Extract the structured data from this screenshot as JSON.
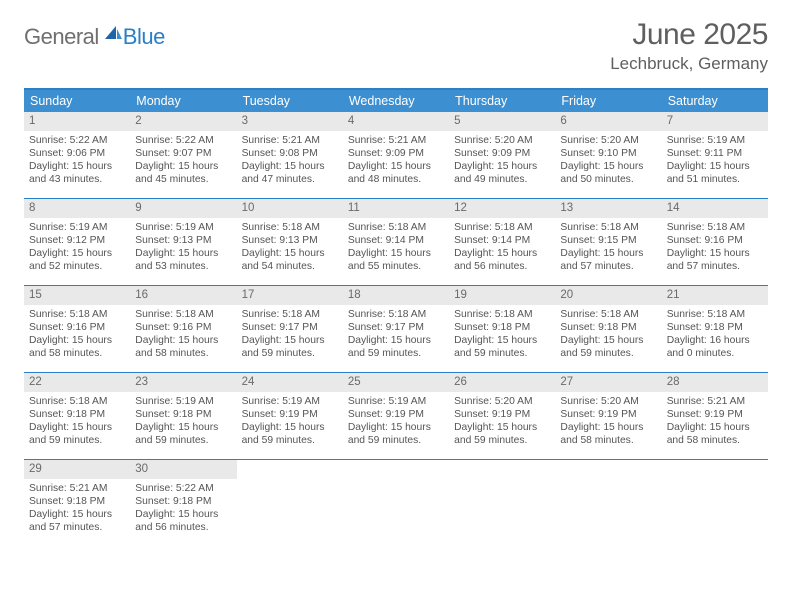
{
  "logo": {
    "general": "General",
    "blue": "Blue"
  },
  "title": "June 2025",
  "location": "Lechbruck, Germany",
  "colors": {
    "header_bar": "#3c8fd0",
    "border": "#2a7fc8",
    "daynum_bg": "#e9e9e9",
    "text": "#555555",
    "logo_gray": "#6f6f6f",
    "logo_blue": "#2a7fc8",
    "background": "#ffffff"
  },
  "day_headers": [
    "Sunday",
    "Monday",
    "Tuesday",
    "Wednesday",
    "Thursday",
    "Friday",
    "Saturday"
  ],
  "weeks": [
    [
      {
        "n": "1",
        "sr": "5:22 AM",
        "ss": "9:06 PM",
        "dl": "15 hours and 43 minutes."
      },
      {
        "n": "2",
        "sr": "5:22 AM",
        "ss": "9:07 PM",
        "dl": "15 hours and 45 minutes."
      },
      {
        "n": "3",
        "sr": "5:21 AM",
        "ss": "9:08 PM",
        "dl": "15 hours and 47 minutes."
      },
      {
        "n": "4",
        "sr": "5:21 AM",
        "ss": "9:09 PM",
        "dl": "15 hours and 48 minutes."
      },
      {
        "n": "5",
        "sr": "5:20 AM",
        "ss": "9:09 PM",
        "dl": "15 hours and 49 minutes."
      },
      {
        "n": "6",
        "sr": "5:20 AM",
        "ss": "9:10 PM",
        "dl": "15 hours and 50 minutes."
      },
      {
        "n": "7",
        "sr": "5:19 AM",
        "ss": "9:11 PM",
        "dl": "15 hours and 51 minutes."
      }
    ],
    [
      {
        "n": "8",
        "sr": "5:19 AM",
        "ss": "9:12 PM",
        "dl": "15 hours and 52 minutes."
      },
      {
        "n": "9",
        "sr": "5:19 AM",
        "ss": "9:13 PM",
        "dl": "15 hours and 53 minutes."
      },
      {
        "n": "10",
        "sr": "5:18 AM",
        "ss": "9:13 PM",
        "dl": "15 hours and 54 minutes."
      },
      {
        "n": "11",
        "sr": "5:18 AM",
        "ss": "9:14 PM",
        "dl": "15 hours and 55 minutes."
      },
      {
        "n": "12",
        "sr": "5:18 AM",
        "ss": "9:14 PM",
        "dl": "15 hours and 56 minutes."
      },
      {
        "n": "13",
        "sr": "5:18 AM",
        "ss": "9:15 PM",
        "dl": "15 hours and 57 minutes."
      },
      {
        "n": "14",
        "sr": "5:18 AM",
        "ss": "9:16 PM",
        "dl": "15 hours and 57 minutes."
      }
    ],
    [
      {
        "n": "15",
        "sr": "5:18 AM",
        "ss": "9:16 PM",
        "dl": "15 hours and 58 minutes."
      },
      {
        "n": "16",
        "sr": "5:18 AM",
        "ss": "9:16 PM",
        "dl": "15 hours and 58 minutes."
      },
      {
        "n": "17",
        "sr": "5:18 AM",
        "ss": "9:17 PM",
        "dl": "15 hours and 59 minutes."
      },
      {
        "n": "18",
        "sr": "5:18 AM",
        "ss": "9:17 PM",
        "dl": "15 hours and 59 minutes."
      },
      {
        "n": "19",
        "sr": "5:18 AM",
        "ss": "9:18 PM",
        "dl": "15 hours and 59 minutes."
      },
      {
        "n": "20",
        "sr": "5:18 AM",
        "ss": "9:18 PM",
        "dl": "15 hours and 59 minutes."
      },
      {
        "n": "21",
        "sr": "5:18 AM",
        "ss": "9:18 PM",
        "dl": "16 hours and 0 minutes."
      }
    ],
    [
      {
        "n": "22",
        "sr": "5:18 AM",
        "ss": "9:18 PM",
        "dl": "15 hours and 59 minutes."
      },
      {
        "n": "23",
        "sr": "5:19 AM",
        "ss": "9:18 PM",
        "dl": "15 hours and 59 minutes."
      },
      {
        "n": "24",
        "sr": "5:19 AM",
        "ss": "9:19 PM",
        "dl": "15 hours and 59 minutes."
      },
      {
        "n": "25",
        "sr": "5:19 AM",
        "ss": "9:19 PM",
        "dl": "15 hours and 59 minutes."
      },
      {
        "n": "26",
        "sr": "5:20 AM",
        "ss": "9:19 PM",
        "dl": "15 hours and 59 minutes."
      },
      {
        "n": "27",
        "sr": "5:20 AM",
        "ss": "9:19 PM",
        "dl": "15 hours and 58 minutes."
      },
      {
        "n": "28",
        "sr": "5:21 AM",
        "ss": "9:19 PM",
        "dl": "15 hours and 58 minutes."
      }
    ],
    [
      {
        "n": "29",
        "sr": "5:21 AM",
        "ss": "9:18 PM",
        "dl": "15 hours and 57 minutes."
      },
      {
        "n": "30",
        "sr": "5:22 AM",
        "ss": "9:18 PM",
        "dl": "15 hours and 56 minutes."
      },
      null,
      null,
      null,
      null,
      null
    ]
  ],
  "labels": {
    "sunrise": "Sunrise: ",
    "sunset": "Sunset: ",
    "daylight": "Daylight: "
  }
}
